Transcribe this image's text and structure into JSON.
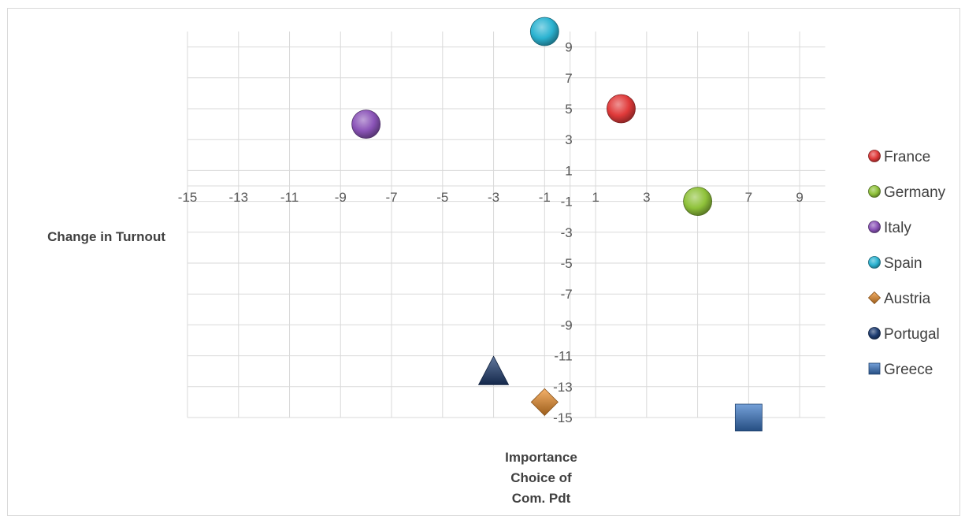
{
  "chart_data": {
    "type": "scatter",
    "title": "",
    "xlabel": "Change in Turnout",
    "ylabel": [
      "Importance",
      "Choice of",
      "Com. Pdt"
    ],
    "xlim": [
      -15,
      10
    ],
    "ylim": [
      -15,
      10
    ],
    "x_ticks": [
      "-15",
      "-13",
      "-11",
      "-9",
      "-7",
      "-5",
      "-3",
      "-1",
      "1",
      "3",
      "5",
      "7",
      "9"
    ],
    "y_ticks": [
      "-15",
      "-13",
      "-11",
      "-9",
      "-7",
      "-5",
      "-3",
      "-1",
      "1",
      "3",
      "5",
      "7",
      "9"
    ],
    "grid": true,
    "legend_position": "right",
    "series": [
      {
        "name": "France",
        "x": 2,
        "y": 5,
        "marker": "sphere",
        "color": "#e03a3a"
      },
      {
        "name": "Germany",
        "x": 5,
        "y": -1,
        "marker": "sphere",
        "color": "#8fc23a"
      },
      {
        "name": "Italy",
        "x": -8,
        "y": 4,
        "marker": "sphere",
        "color": "#8b54b8"
      },
      {
        "name": "Spain",
        "x": -1,
        "y": 10,
        "marker": "sphere",
        "color": "#2bb3d1"
      },
      {
        "name": "Austria",
        "x": -1,
        "y": -14,
        "marker": "diamond",
        "color": "#f0902a"
      },
      {
        "name": "Portugal",
        "x": -3,
        "y": -12,
        "marker": "triangle",
        "legend_marker": "sphere",
        "color": "#1f3e73"
      },
      {
        "name": "Greece",
        "x": 7,
        "y": -15,
        "marker": "square",
        "color": "#3a78c8"
      }
    ]
  }
}
